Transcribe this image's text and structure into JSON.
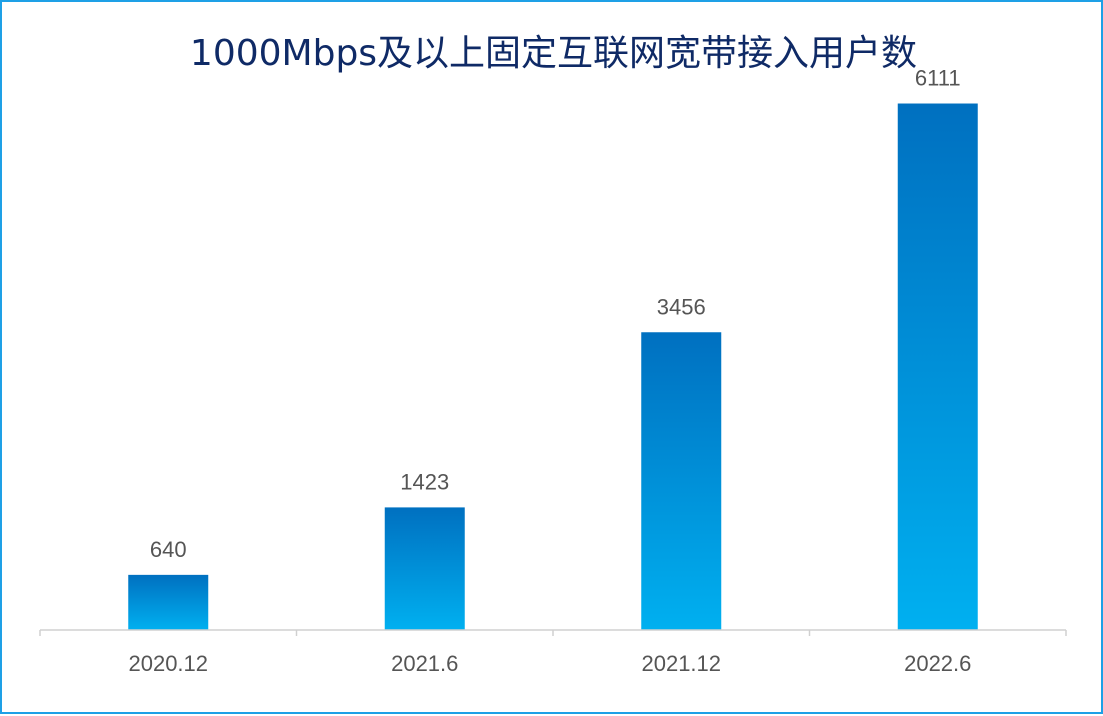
{
  "chart_data": {
    "type": "bar",
    "title": "1000Mbps及以上固定互联网宽带接入用户数",
    "categories": [
      "2020.12",
      "2021.6",
      "2021.12",
      "2022.6"
    ],
    "values": [
      640,
      1423,
      3456,
      6111
    ],
    "xlabel": "",
    "ylabel": "",
    "ylim": [
      0,
      6500
    ],
    "grid": false,
    "legend": "none",
    "colors": {
      "bar_top": "#0070c0",
      "bar_bottom": "#00b0f0",
      "frame": "#1ea0e6",
      "title": "#0f2a66",
      "axis": "#d0d0d0",
      "text": "#555555"
    }
  }
}
